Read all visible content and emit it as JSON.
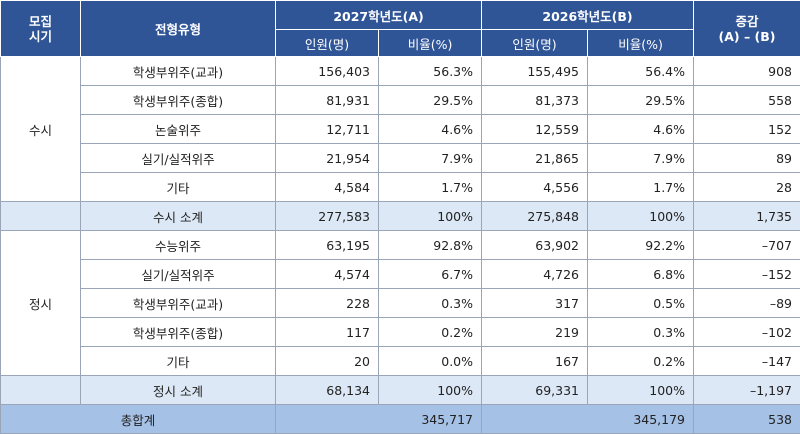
{
  "header": {
    "col_period": "모집\n시기",
    "col_type": "전형유형",
    "year_a": "2027학년도(A)",
    "year_b": "2026학년도(B)",
    "col_diff": "증감\n(A) – (B)",
    "persons": "인원(명)",
    "ratio": "비율(%)"
  },
  "susi": {
    "label": "수시",
    "rows": [
      {
        "type": "학생부위주(교과)",
        "a_n": "156,403",
        "a_r": "56.3%",
        "b_n": "155,495",
        "b_r": "56.4%",
        "diff": "908"
      },
      {
        "type": "학생부위주(종합)",
        "a_n": "81,931",
        "a_r": "29.5%",
        "b_n": "81,373",
        "b_r": "29.5%",
        "diff": "558"
      },
      {
        "type": "논술위주",
        "a_n": "12,711",
        "a_r": "4.6%",
        "b_n": "12,559",
        "b_r": "4.6%",
        "diff": "152"
      },
      {
        "type": "실기/실적위주",
        "a_n": "21,954",
        "a_r": "7.9%",
        "b_n": "21,865",
        "b_r": "7.9%",
        "diff": "89"
      },
      {
        "type": "기타",
        "a_n": "4,584",
        "a_r": "1.7%",
        "b_n": "4,556",
        "b_r": "1.7%",
        "diff": "28"
      }
    ],
    "subtotal": {
      "label": "수시 소계",
      "a_n": "277,583",
      "a_r": "100%",
      "b_n": "275,848",
      "b_r": "100%",
      "diff": "1,735"
    }
  },
  "jeongsi": {
    "label": "정시",
    "rows": [
      {
        "type": "수능위주",
        "a_n": "63,195",
        "a_r": "92.8%",
        "b_n": "63,902",
        "b_r": "92.2%",
        "diff": "–707"
      },
      {
        "type": "실기/실적위주",
        "a_n": "4,574",
        "a_r": "6.7%",
        "b_n": "4,726",
        "b_r": "6.8%",
        "diff": "–152"
      },
      {
        "type": "학생부위주(교과)",
        "a_n": "228",
        "a_r": "0.3%",
        "b_n": "317",
        "b_r": "0.5%",
        "diff": "–89"
      },
      {
        "type": "학생부위주(종합)",
        "a_n": "117",
        "a_r": "0.2%",
        "b_n": "219",
        "b_r": "0.3%",
        "diff": "–102"
      },
      {
        "type": "기타",
        "a_n": "20",
        "a_r": "0.0%",
        "b_n": "167",
        "b_r": "0.2%",
        "diff": "–147"
      }
    ],
    "subtotal": {
      "label": "정시 소계",
      "a_n": "68,134",
      "a_r": "100%",
      "b_n": "69,331",
      "b_r": "100%",
      "diff": "–1,197"
    }
  },
  "total": {
    "label": "총합계",
    "a": "345,717",
    "b": "345,179",
    "diff": "538"
  }
}
